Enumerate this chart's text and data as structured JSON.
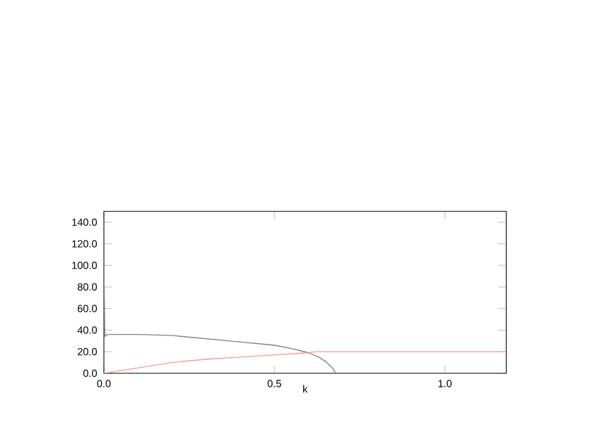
{
  "chart_data": {
    "type": "line",
    "xlabel": "k",
    "xlim": [
      0,
      1.18
    ],
    "ylim": [
      0,
      150
    ],
    "xticks": [
      {
        "value": 0,
        "label": "0.0"
      },
      {
        "value": 0.5,
        "label": "0.5"
      },
      {
        "value": 1.0,
        "label": "1.0"
      }
    ],
    "yticks": [
      {
        "value": 0,
        "label": "0.0"
      },
      {
        "value": 20,
        "label": "20.0"
      },
      {
        "value": 40,
        "label": "40.0"
      },
      {
        "value": 60,
        "label": "60.0"
      },
      {
        "value": 80,
        "label": "80.0"
      },
      {
        "value": 100,
        "label": "100.0"
      },
      {
        "value": 120,
        "label": "120.0"
      },
      {
        "value": 140,
        "label": "140.0"
      }
    ],
    "grid": false,
    "marker": "none",
    "line_style": "solid",
    "series": [
      {
        "color": "#808080",
        "x": [
          0,
          0.003,
          0.01,
          0.1,
          0.2,
          0.3,
          0.4,
          0.5,
          0.55,
          0.6,
          0.63,
          0.65,
          0.67,
          0.68,
          0.7,
          0.9,
          1.18
        ],
        "values": [
          100,
          34,
          36,
          36,
          35,
          32,
          29,
          26,
          23,
          19,
          15,
          11,
          5,
          0,
          0,
          0,
          0
        ]
      },
      {
        "color": "#ff9999",
        "x": [
          0,
          0.1,
          0.2,
          0.3,
          0.4,
          0.5,
          0.6,
          0.62,
          0.8,
          1.0,
          1.18
        ],
        "values": [
          0,
          5,
          10,
          13,
          15,
          17,
          19,
          20,
          20,
          20,
          20
        ]
      }
    ]
  }
}
